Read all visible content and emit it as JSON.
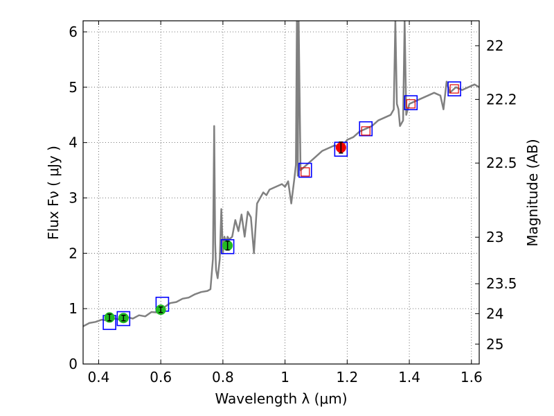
{
  "chart_data": {
    "type": "line",
    "xlabel": "Wavelength  λ (μm)",
    "ylabel": "Flux  Fν  ( μJy )",
    "ylabel_right": "Magnitude (AB)",
    "xlim": [
      0.35,
      1.625
    ],
    "ylim": [
      0,
      6.2
    ],
    "grid": true,
    "x_ticks": [
      0.4,
      0.6,
      0.8,
      1.0,
      1.2,
      1.4,
      1.6
    ],
    "x_tick_labels": [
      "0.4",
      "0.6",
      "0.8",
      "1",
      "1.2",
      "1.4",
      "1.6"
    ],
    "y_ticks": [
      0,
      1,
      2,
      3,
      4,
      5,
      6
    ],
    "y_tick_labels": [
      "0",
      "1",
      "2",
      "3",
      "4",
      "5",
      "6"
    ],
    "right_ticks": [
      {
        "label": "22",
        "flux": 5.75
      },
      {
        "label": "22.2",
        "flux": 4.78
      },
      {
        "label": "22.5",
        "flux": 3.63
      },
      {
        "label": "23",
        "flux": 2.29
      },
      {
        "label": "23.5",
        "flux": 1.45
      },
      {
        "label": "24",
        "flux": 0.91
      },
      {
        "label": "25",
        "flux": 0.36
      }
    ],
    "series": [
      {
        "type": "line",
        "color": "#808080",
        "x": [
          0.35,
          0.37,
          0.39,
          0.41,
          0.43,
          0.45,
          0.47,
          0.49,
          0.51,
          0.53,
          0.55,
          0.57,
          0.59,
          0.61,
          0.63,
          0.65,
          0.67,
          0.69,
          0.71,
          0.73,
          0.75,
          0.76,
          0.768,
          0.772,
          0.775,
          0.778,
          0.783,
          0.79,
          0.795,
          0.8,
          0.805,
          0.81,
          0.815,
          0.82,
          0.83,
          0.84,
          0.85,
          0.86,
          0.87,
          0.88,
          0.89,
          0.9,
          0.91,
          0.92,
          0.93,
          0.94,
          0.95,
          0.97,
          0.99,
          1.0,
          1.01,
          1.02,
          1.03,
          1.035,
          1.038,
          1.041,
          1.044,
          1.05,
          1.06,
          1.07,
          1.08,
          1.1,
          1.12,
          1.14,
          1.16,
          1.18,
          1.2,
          1.22,
          1.24,
          1.26,
          1.28,
          1.3,
          1.32,
          1.34,
          1.35,
          1.355,
          1.36,
          1.365,
          1.37,
          1.38,
          1.385,
          1.39,
          1.395,
          1.4,
          1.42,
          1.44,
          1.46,
          1.48,
          1.5,
          1.51,
          1.52,
          1.53,
          1.55,
          1.57,
          1.59,
          1.61,
          1.625
        ],
        "y": [
          0.68,
          0.74,
          0.76,
          0.8,
          0.78,
          0.82,
          0.8,
          0.85,
          0.82,
          0.88,
          0.86,
          0.94,
          0.93,
          1.02,
          1.1,
          1.12,
          1.18,
          1.2,
          1.26,
          1.3,
          1.32,
          1.35,
          1.9,
          4.3,
          2.2,
          1.7,
          1.55,
          1.9,
          2.8,
          2.0,
          2.3,
          2.2,
          2.3,
          2.25,
          2.3,
          2.6,
          2.4,
          2.7,
          2.3,
          2.75,
          2.65,
          2.0,
          2.9,
          3.0,
          3.1,
          3.05,
          3.15,
          3.2,
          3.25,
          3.2,
          3.3,
          2.9,
          3.35,
          3.6,
          6.2,
          3.4,
          6.2,
          3.5,
          3.55,
          3.6,
          3.65,
          3.75,
          3.85,
          3.9,
          3.95,
          3.9,
          4.05,
          4.1,
          4.2,
          4.25,
          4.3,
          4.4,
          4.45,
          4.5,
          4.6,
          6.2,
          4.7,
          4.6,
          4.3,
          4.4,
          6.2,
          4.5,
          4.6,
          4.7,
          4.75,
          4.8,
          4.85,
          4.9,
          4.85,
          4.6,
          5.1,
          4.9,
          5.0,
          4.95,
          5.0,
          5.05,
          5.0
        ]
      },
      {
        "type": "box-markers",
        "edge_color": "#0000ff",
        "x": [
          0.435,
          0.48,
          0.605,
          0.815,
          1.065,
          1.18,
          1.26,
          1.405,
          1.545
        ],
        "y": [
          0.75,
          0.82,
          1.08,
          2.12,
          3.5,
          3.88,
          4.25,
          4.72,
          4.97
        ]
      },
      {
        "type": "open-squares",
        "edge_color": "#dd0000",
        "x": [
          1.065,
          1.26,
          1.405,
          1.545
        ],
        "y": [
          3.47,
          4.21,
          4.7,
          4.97
        ]
      },
      {
        "type": "points-with-errors",
        "color": "#22bb22",
        "x": [
          0.435,
          0.48,
          0.6,
          0.815
        ],
        "y": [
          0.84,
          0.83,
          0.98,
          2.14
        ],
        "err": [
          0.06,
          0.05,
          0.05,
          0.08
        ]
      },
      {
        "type": "points-with-errors",
        "color": "#ee0000",
        "x": [
          1.18
        ],
        "y": [
          3.91
        ],
        "err": [
          0.1
        ]
      }
    ]
  }
}
